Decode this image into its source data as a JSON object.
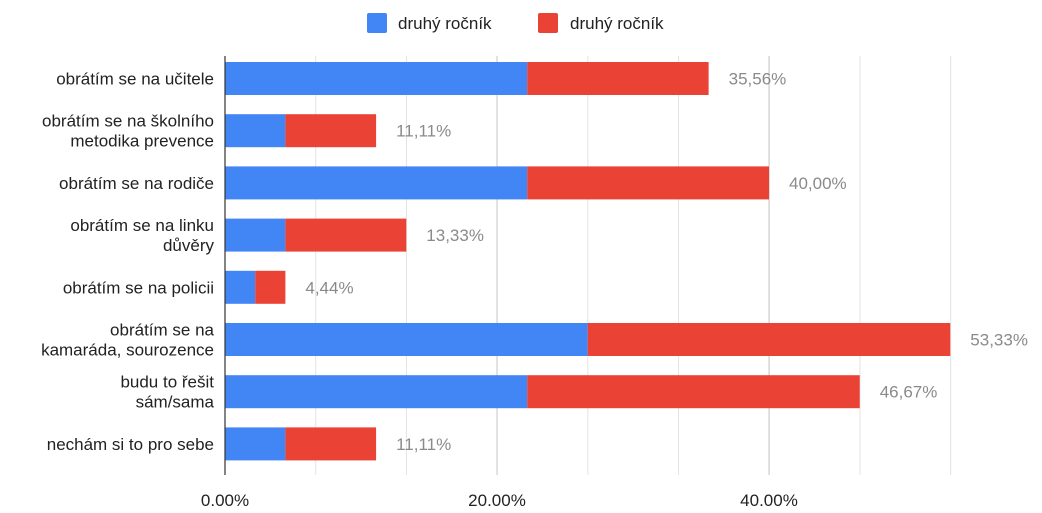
{
  "chart_data": {
    "type": "bar",
    "orientation": "horizontal",
    "stacked": true,
    "categories": [
      "obrátím se na učitele",
      "obrátím se na školního metodika prevence",
      "obrátím se na rodiče",
      "obrátím se na linku důvěry",
      "obrátím se na policii",
      "obrátím se na kamaráda, sourozence",
      "budu to řešit sám/sama",
      "nechám si to pro sebe"
    ],
    "category_lines": [
      [
        "obrátím se na učitele"
      ],
      [
        "obrátím se na školního",
        "metodika prevence"
      ],
      [
        "obrátím se na rodiče"
      ],
      [
        "obrátím se na linku",
        "důvěry"
      ],
      [
        "obrátím se na policii"
      ],
      [
        "obrátím se na",
        "kamaráda, sourozence"
      ],
      [
        "budu to řešit",
        "sám/sama"
      ],
      [
        "nechám si to pro sebe"
      ]
    ],
    "series": [
      {
        "name": "druhý ročník",
        "color": "#4285f4",
        "values": [
          22.22,
          4.44,
          22.22,
          4.44,
          2.22,
          26.67,
          22.22,
          4.44
        ]
      },
      {
        "name": "druhý ročník",
        "color": "#ea4335",
        "values": [
          13.34,
          6.67,
          17.78,
          8.89,
          2.22,
          26.66,
          24.45,
          6.67
        ]
      }
    ],
    "totals": [
      35.56,
      11.11,
      40.0,
      13.33,
      4.44,
      53.33,
      46.67,
      11.11
    ],
    "total_labels": [
      "35,56%",
      "11,11%",
      "40,00%",
      "13,33%",
      "4,44%",
      "53,33%",
      "46,67%",
      "11,11%"
    ],
    "xlim": [
      0,
      60
    ],
    "xticks": [
      0,
      20,
      40
    ],
    "xtick_labels": [
      "0.00%",
      "20.00%",
      "40.00%"
    ],
    "minor_grid_step": 6.67,
    "grid": true,
    "legend": "top-center",
    "title": "",
    "xlabel": "",
    "ylabel": ""
  }
}
